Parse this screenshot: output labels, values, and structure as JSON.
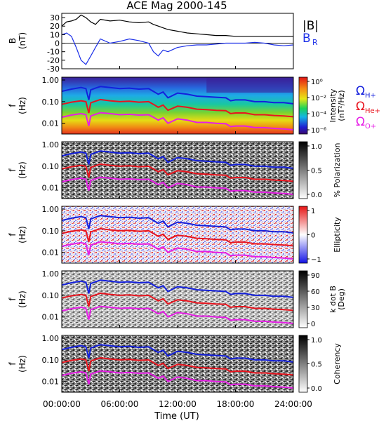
{
  "title": "ACE Mag 2000-145",
  "xaxis": {
    "label": "Time (UT)",
    "ticks": [
      "00:00:00",
      "06:00:00",
      "12:00:00",
      "18:00:00",
      "24:00:00"
    ],
    "range_hours": [
      0,
      24
    ]
  },
  "colors": {
    "btot": "#000000",
    "br": "#1a2ee8",
    "oh": "#1420dc",
    "ohe": "#e8141e",
    "oo": "#e61ee6"
  },
  "legend_top": {
    "btot": "|B|",
    "br": "B",
    "br_sub": "R"
  },
  "legend_gyro": [
    {
      "sym": "Ω",
      "sub": "H+",
      "color": "#1420dc"
    },
    {
      "sym": "Ω",
      "sub": "He+",
      "color": "#e8141e"
    },
    {
      "sym": "Ω",
      "sub": "O+",
      "color": "#e61ee6"
    }
  ],
  "chart_data": [
    {
      "type": "line",
      "title": "ACE Mag 2000-145",
      "ylabel": "B",
      "yunit": "(nT)",
      "ylim": [
        -30,
        35
      ],
      "yticks": [
        "30",
        "20",
        "10",
        "0",
        "-10",
        "-20",
        "-30"
      ],
      "x_hours": [
        0,
        0.5,
        1,
        1.5,
        2,
        2.5,
        3,
        3.5,
        4,
        5,
        6,
        7,
        8,
        9,
        9.5,
        10,
        10.5,
        11,
        12,
        13,
        14,
        15,
        16,
        17,
        18,
        19,
        20,
        21,
        22,
        23,
        24
      ],
      "series": [
        {
          "name": "|B|",
          "values": [
            20,
            25,
            26,
            28,
            33,
            30,
            25,
            22,
            28,
            26,
            27,
            25,
            24,
            25,
            22,
            20,
            18,
            16,
            14,
            12,
            11,
            10,
            9,
            9,
            8,
            8,
            8,
            8,
            8,
            8,
            8
          ]
        },
        {
          "name": "B_R",
          "values": [
            10,
            12,
            8,
            -5,
            -20,
            -25,
            -15,
            -5,
            5,
            0,
            2,
            5,
            3,
            0,
            -10,
            -15,
            -8,
            -10,
            -5,
            -3,
            -2,
            -2,
            -1,
            0,
            0,
            0,
            1,
            0,
            -2,
            -3,
            -2
          ]
        }
      ]
    },
    {
      "type": "heatmap",
      "quantity": "Intensity",
      "ylabel": "f",
      "yunit": "(Hz)",
      "yscale": "log",
      "ylim": [
        0.003,
        1.3
      ],
      "yticks": [
        "1.00",
        "0.10",
        "0.01"
      ],
      "colorbar": {
        "label": "Intensity",
        "unit": "(nT²/Hz)",
        "scale": "log",
        "ticks": [
          "10⁰",
          "10⁻²",
          "10⁻⁴",
          "10⁻⁶"
        ],
        "range": [
          1e-06,
          1
        ]
      }
    },
    {
      "type": "heatmap",
      "quantity": "Polarization",
      "ylabel": "f",
      "yunit": "(Hz)",
      "yscale": "log",
      "yticks": [
        "1.00",
        "0.10",
        "0.01"
      ],
      "colorbar": {
        "label": "% Polarization",
        "ticks": [
          "1.0",
          "0.5",
          "0.0"
        ],
        "range": [
          0,
          1
        ]
      }
    },
    {
      "type": "heatmap",
      "quantity": "Ellipticity",
      "ylabel": "f",
      "yunit": "(Hz)",
      "yscale": "log",
      "yticks": [
        "1.00",
        "0.10",
        "0.01"
      ],
      "colorbar": {
        "label": "Ellipticity",
        "ticks": [
          "1",
          "0",
          "−1"
        ],
        "range": [
          -1,
          1
        ]
      }
    },
    {
      "type": "heatmap",
      "quantity": "k dot B",
      "ylabel": "f",
      "yunit": "(Hz)",
      "yscale": "log",
      "yticks": [
        "1.00",
        "0.10",
        "0.01"
      ],
      "colorbar": {
        "label": "k dot B",
        "unit": "(Deg)",
        "ticks": [
          "90",
          "60",
          "30",
          "0"
        ],
        "range": [
          0,
          90
        ]
      }
    },
    {
      "type": "heatmap",
      "quantity": "Coherency",
      "ylabel": "f",
      "yunit": "(Hz)",
      "yscale": "log",
      "yticks": [
        "1.00",
        "0.10",
        "0.01"
      ],
      "colorbar": {
        "label": "Coherency",
        "ticks": [
          "1.0",
          "0.5",
          "0.0"
        ],
        "range": [
          0,
          1
        ]
      }
    }
  ],
  "gyrofrequency_lines": {
    "x_hours": [
      0,
      1,
      2,
      2.5,
      2.8,
      3,
      3.5,
      4,
      5,
      6,
      7,
      8,
      9,
      9.5,
      10,
      10.5,
      11,
      12,
      13,
      14,
      15,
      16,
      17,
      17.5,
      18,
      19,
      20,
      21,
      22,
      23,
      24
    ],
    "series": [
      {
        "name": "Ω H+",
        "values_hz": [
          0.3,
          0.38,
          0.45,
          0.4,
          0.12,
          0.35,
          0.42,
          0.5,
          0.45,
          0.4,
          0.42,
          0.38,
          0.4,
          0.3,
          0.22,
          0.28,
          0.15,
          0.25,
          0.22,
          0.18,
          0.17,
          0.16,
          0.15,
          0.11,
          0.12,
          0.12,
          0.1,
          0.1,
          0.09,
          0.09,
          0.08
        ]
      },
      {
        "name": "Ω He+",
        "values_hz": [
          0.075,
          0.095,
          0.11,
          0.1,
          0.03,
          0.088,
          0.105,
          0.125,
          0.11,
          0.1,
          0.105,
          0.095,
          0.1,
          0.075,
          0.055,
          0.07,
          0.04,
          0.062,
          0.055,
          0.045,
          0.043,
          0.04,
          0.038,
          0.028,
          0.03,
          0.03,
          0.025,
          0.025,
          0.023,
          0.022,
          0.02
        ]
      },
      {
        "name": "Ω O+",
        "values_hz": [
          0.019,
          0.024,
          0.028,
          0.025,
          0.0075,
          0.022,
          0.026,
          0.031,
          0.028,
          0.025,
          0.026,
          0.024,
          0.025,
          0.019,
          0.014,
          0.018,
          0.01,
          0.016,
          0.014,
          0.011,
          0.011,
          0.01,
          0.0095,
          0.007,
          0.0075,
          0.0075,
          0.0063,
          0.0063,
          0.0058,
          0.0055,
          0.005
        ]
      }
    ]
  }
}
